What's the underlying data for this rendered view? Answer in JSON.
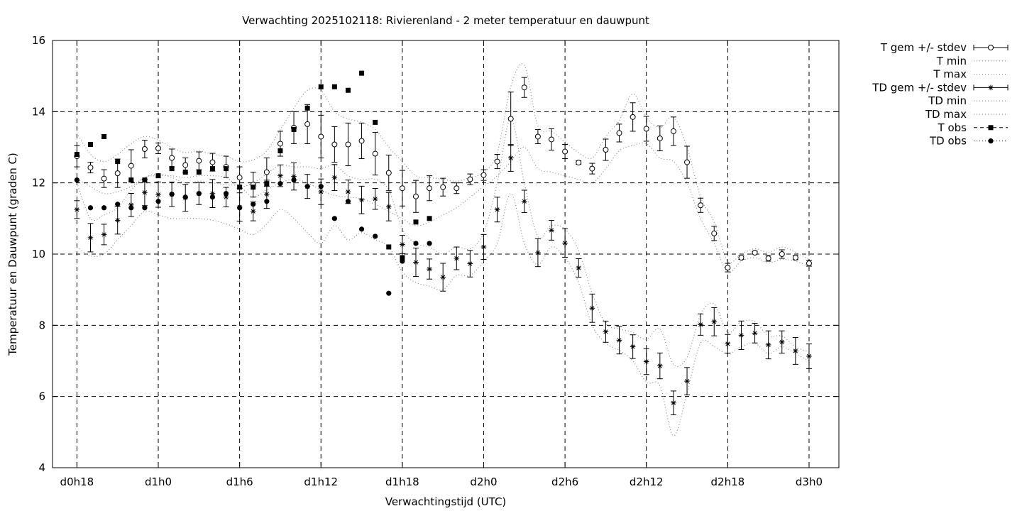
{
  "chart_data": {
    "type": "line",
    "title": "Verwachting 2025102118: Rivierenland - 2 meter temperatuur en dauwpunt",
    "xlabel": "Verwachtingstijd (UTC)",
    "ylabel": "Temperatuur en Dauwpunt (graden C)",
    "x_ticks": [
      {
        "x": 0,
        "label": "d0h18"
      },
      {
        "x": 6,
        "label": "d1h0"
      },
      {
        "x": 12,
        "label": "d1h6"
      },
      {
        "x": 18,
        "label": "d1h12"
      },
      {
        "x": 24,
        "label": "d1h18"
      },
      {
        "x": 30,
        "label": "d2h0"
      },
      {
        "x": 36,
        "label": "d2h6"
      },
      {
        "x": 42,
        "label": "d2h12"
      },
      {
        "x": 48,
        "label": "d2h18"
      },
      {
        "x": 54,
        "label": "d3h0"
      }
    ],
    "y_ticks": [
      4,
      6,
      8,
      10,
      12,
      14,
      16
    ],
    "xlim": [
      -1.8,
      56.2
    ],
    "ylim": [
      4,
      16
    ],
    "grid": true,
    "legend_position": "outside top-right",
    "series": [
      {
        "name": "T gem +/- stdev",
        "marker": "open-circle",
        "x": [
          0,
          1,
          2,
          3,
          4,
          5,
          6,
          7,
          8,
          9,
          10,
          11,
          12,
          13,
          14,
          15,
          16,
          17,
          18,
          19,
          20,
          21,
          22,
          23,
          24,
          25,
          26,
          27,
          28,
          29,
          30,
          31,
          32,
          33,
          34,
          35,
          36,
          37,
          38,
          39,
          40,
          41,
          42,
          43,
          44,
          45,
          46,
          47,
          48,
          49,
          50,
          51,
          52,
          53,
          54
        ],
        "mean": [
          12.75,
          12.43,
          12.12,
          12.27,
          12.48,
          12.95,
          12.97,
          12.7,
          12.5,
          12.62,
          12.58,
          12.45,
          12.15,
          11.95,
          12.3,
          13.1,
          13.55,
          13.65,
          13.3,
          13.08,
          13.08,
          13.18,
          12.82,
          12.28,
          11.85,
          11.62,
          11.85,
          11.88,
          11.85,
          12.1,
          12.22,
          12.6,
          13.8,
          14.68,
          13.3,
          13.22,
          12.88,
          12.57,
          12.4,
          12.93,
          13.4,
          13.85,
          13.52,
          13.25,
          13.45,
          12.58,
          11.37,
          10.58,
          9.62,
          9.9,
          10.04,
          9.88,
          10.0,
          9.9,
          9.74
        ],
        "stdev": [
          0.3,
          0.15,
          0.25,
          0.4,
          0.45,
          0.25,
          0.15,
          0.25,
          0.2,
          0.25,
          0.25,
          0.3,
          0.3,
          0.35,
          0.4,
          0.35,
          0.45,
          0.55,
          0.6,
          0.5,
          0.6,
          0.5,
          0.6,
          0.5,
          0.5,
          0.45,
          0.35,
          0.25,
          0.15,
          0.15,
          0.15,
          0.2,
          0.75,
          0.28,
          0.2,
          0.3,
          0.2,
          0.05,
          0.15,
          0.3,
          0.25,
          0.4,
          0.35,
          0.35,
          0.4,
          0.45,
          0.2,
          0.2,
          0.12,
          0.05,
          0.04,
          0.08,
          0.12,
          0.06,
          0.08
        ]
      },
      {
        "name": "T min",
        "style": "dotted",
        "x": [
          0,
          1,
          2,
          3,
          4,
          5,
          6,
          7,
          8,
          9,
          10,
          11,
          12,
          13,
          14,
          15,
          16,
          17,
          18,
          19,
          20,
          21,
          22,
          23,
          24,
          25,
          26,
          27,
          28,
          29,
          30,
          31,
          32,
          33,
          34,
          35,
          36,
          37,
          38,
          39,
          40,
          41,
          42,
          43,
          44,
          45,
          46,
          47,
          48,
          49,
          50,
          51,
          52,
          53,
          54
        ],
        "y": [
          12.1,
          11.9,
          11.7,
          11.75,
          11.9,
          12.15,
          12.25,
          12.15,
          12.0,
          12.05,
          12.0,
          11.95,
          11.9,
          11.6,
          11.8,
          12.0,
          12.1,
          12.0,
          11.8,
          11.65,
          11.6,
          11.55,
          11.4,
          11.2,
          11.0,
          10.8,
          10.9,
          11.1,
          11.3,
          11.6,
          11.9,
          12.2,
          12.6,
          13.0,
          12.4,
          12.3,
          12.2,
          12.1,
          12.0,
          12.4,
          12.9,
          13.05,
          13.1,
          12.7,
          12.6,
          12.0,
          11.0,
          10.3,
          9.5,
          9.8,
          9.9,
          9.75,
          9.85,
          9.8,
          9.65
        ]
      },
      {
        "name": "T max",
        "style": "dotted",
        "x": [
          0,
          1,
          2,
          3,
          4,
          5,
          6,
          7,
          8,
          9,
          10,
          11,
          12,
          13,
          14,
          15,
          16,
          17,
          18,
          19,
          20,
          21,
          22,
          23,
          24,
          25,
          26,
          27,
          28,
          29,
          30,
          31,
          32,
          33,
          34,
          35,
          36,
          37,
          38,
          39,
          40,
          41,
          42,
          43,
          44,
          45,
          46,
          47,
          48,
          49,
          50,
          51,
          52,
          53,
          54
        ],
        "y": [
          13.4,
          12.8,
          12.6,
          12.8,
          13.1,
          13.3,
          13.2,
          13.0,
          12.85,
          12.9,
          12.8,
          12.75,
          12.6,
          12.65,
          12.9,
          13.5,
          14.1,
          14.6,
          14.6,
          14.0,
          13.8,
          13.7,
          13.5,
          13.0,
          12.6,
          12.2,
          12.15,
          12.1,
          12.05,
          12.15,
          12.3,
          12.85,
          14.7,
          15.3,
          13.6,
          13.45,
          13.15,
          12.85,
          12.7,
          13.3,
          13.75,
          14.5,
          13.85,
          13.55,
          13.85,
          13.0,
          11.6,
          10.9,
          9.8,
          10.0,
          10.15,
          10.05,
          10.2,
          10.05,
          9.85
        ]
      },
      {
        "name": "TD gem +/- stdev",
        "marker": "asterisk",
        "x": [
          0,
          1,
          2,
          3,
          4,
          5,
          6,
          7,
          8,
          9,
          10,
          11,
          12,
          13,
          14,
          15,
          16,
          17,
          18,
          19,
          20,
          21,
          22,
          23,
          24,
          25,
          26,
          27,
          28,
          29,
          30,
          31,
          32,
          33,
          34,
          35,
          36,
          37,
          38,
          39,
          40,
          41,
          42,
          43,
          44,
          45,
          46,
          47,
          48,
          49,
          50,
          51,
          52,
          53,
          54
        ],
        "mean": [
          11.25,
          10.46,
          10.55,
          10.95,
          11.38,
          11.73,
          11.67,
          11.68,
          11.58,
          11.7,
          11.7,
          11.6,
          11.32,
          11.2,
          11.68,
          12.2,
          12.18,
          11.9,
          11.75,
          12.15,
          11.75,
          11.52,
          11.55,
          11.33,
          10.27,
          9.77,
          9.58,
          9.35,
          9.88,
          9.73,
          10.2,
          11.25,
          12.7,
          11.48,
          10.04,
          10.67,
          10.31,
          9.61,
          8.48,
          7.82,
          7.58,
          7.4,
          6.98,
          6.86,
          5.82,
          6.43,
          8.02,
          8.1,
          7.48,
          7.72,
          7.78,
          7.45,
          7.53,
          7.28,
          7.13
        ]
      },
      {
        "name": "TD min",
        "style": "dotted",
        "x": [
          0,
          1,
          2,
          3,
          4,
          5,
          6,
          7,
          8,
          9,
          10,
          11,
          12,
          13,
          14,
          15,
          16,
          17,
          18,
          19,
          20,
          21,
          22,
          23,
          24,
          25,
          26,
          27,
          28,
          29,
          30,
          31,
          32,
          33,
          34,
          35,
          36,
          37,
          38,
          39,
          40,
          41,
          42,
          43,
          44,
          45,
          46,
          47,
          48,
          49,
          50,
          51,
          52,
          53,
          54
        ],
        "y": [
          10.2,
          9.95,
          10.0,
          10.4,
          10.8,
          11.2,
          11.1,
          11.0,
          11.0,
          11.0,
          10.95,
          10.85,
          10.7,
          10.55,
          10.85,
          11.25,
          11.0,
          10.6,
          10.3,
          10.8,
          10.4,
          10.6,
          10.4,
          10.2,
          9.5,
          9.2,
          9.1,
          9.0,
          9.4,
          9.4,
          9.8,
          10.3,
          11.7,
          10.3,
          9.7,
          10.2,
          9.9,
          9.2,
          8.0,
          7.5,
          7.3,
          7.0,
          6.4,
          6.3,
          4.9,
          6.1,
          7.5,
          7.4,
          7.2,
          7.4,
          7.5,
          7.2,
          7.4,
          7.2,
          7.0
        ]
      },
      {
        "name": "TD max",
        "style": "dotted",
        "x": [
          0,
          1,
          2,
          3,
          4,
          5,
          6,
          7,
          8,
          9,
          10,
          11,
          12,
          13,
          14,
          15,
          16,
          17,
          18,
          19,
          20,
          21,
          22,
          23,
          24,
          25,
          26,
          27,
          28,
          29,
          30,
          31,
          32,
          33,
          34,
          35,
          36,
          37,
          38,
          39,
          40,
          41,
          42,
          43,
          44,
          45,
          46,
          47,
          48,
          49,
          50,
          51,
          52,
          53,
          54
        ],
        "y": [
          12.0,
          11.0,
          11.1,
          11.3,
          11.8,
          12.15,
          12.2,
          12.2,
          12.15,
          12.2,
          12.2,
          12.15,
          11.9,
          12.0,
          12.25,
          12.5,
          12.45,
          12.45,
          12.4,
          12.5,
          12.2,
          12.1,
          12.1,
          11.8,
          10.7,
          10.3,
          10.2,
          10.0,
          10.2,
          10.15,
          10.6,
          12.0,
          13.8,
          12.0,
          10.5,
          10.8,
          10.7,
          10.1,
          8.9,
          8.05,
          7.9,
          7.8,
          7.6,
          7.9,
          6.9,
          7.1,
          8.3,
          8.6,
          7.8,
          8.1,
          8.1,
          7.7,
          7.7,
          7.4,
          7.25
        ]
      },
      {
        "name": "T obs",
        "marker": "filled-square",
        "x": [
          0,
          1,
          2,
          3,
          4,
          5,
          6,
          7,
          8,
          9,
          10,
          11,
          12,
          13,
          14,
          15,
          16,
          17,
          18,
          19,
          20,
          21,
          22,
          23,
          24,
          25,
          26
        ],
        "y": [
          12.8,
          13.08,
          13.3,
          12.6,
          12.08,
          12.08,
          12.2,
          12.4,
          12.3,
          12.3,
          12.4,
          12.4,
          11.88,
          11.88,
          11.98,
          12.9,
          13.5,
          14.1,
          14.7,
          14.7,
          14.6,
          15.08,
          13.7,
          10.2,
          9.9,
          10.9,
          11.0
        ]
      },
      {
        "name": "TD obs",
        "marker": "filled-circle",
        "x": [
          0,
          1,
          2,
          3,
          4,
          5,
          6,
          7,
          8,
          9,
          10,
          11,
          12,
          13,
          14,
          15,
          16,
          17,
          18,
          19,
          20,
          21,
          22,
          23,
          24,
          25,
          26
        ],
        "y": [
          12.08,
          11.3,
          11.3,
          11.4,
          11.3,
          11.3,
          11.48,
          11.68,
          11.6,
          11.7,
          11.6,
          11.7,
          11.3,
          11.4,
          11.48,
          11.98,
          12.08,
          11.9,
          11.9,
          11.0,
          11.48,
          10.7,
          10.5,
          8.9,
          9.8,
          10.3,
          10.3
        ]
      }
    ]
  }
}
